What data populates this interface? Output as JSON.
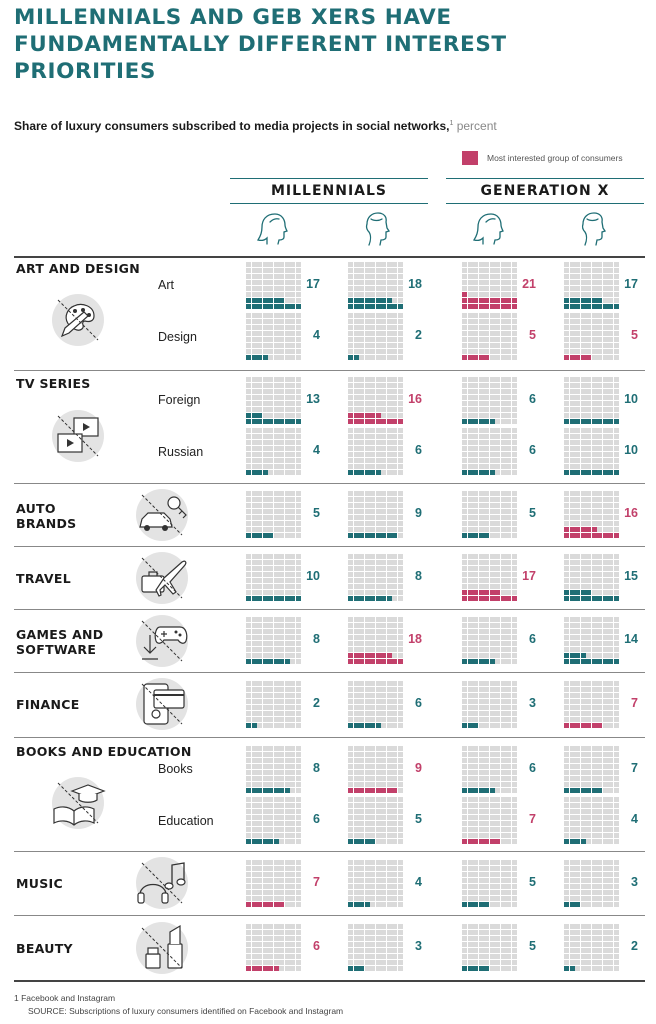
{
  "title_line1": "MILLENNIALS AND GEB XERS HAVE",
  "title_line2": "FUNDAMENTALLY DIFFERENT INTEREST PRIORITIES",
  "subtitle": "Share of luxury consumers subscribed to media projects in social networks,",
  "subtitle_sup": "1",
  "subtitle_unit": " percent",
  "legend_label": "Most interested group of consumers",
  "colors": {
    "teal": "#1f6e75",
    "pink": "#c2406a",
    "empty": "#dadada"
  },
  "footnote_1": "1   Facebook and Instagram",
  "footnote_2": "SOURCE: Subscriptions of luxury consumers identified on Facebook and Instagram",
  "chart_data": {
    "type": "table",
    "unit": "percent",
    "groups": [
      {
        "name": "MILLENNIALS",
        "columns": [
          {
            "gender": "female",
            "icon": "female-head-icon"
          },
          {
            "gender": "male",
            "icon": "male-head-icon"
          }
        ]
      },
      {
        "name": "GENERATION X",
        "columns": [
          {
            "gender": "female",
            "icon": "female-head-icon"
          },
          {
            "gender": "male",
            "icon": "male-head-icon"
          }
        ]
      }
    ],
    "column_order": [
      "Millennials female",
      "Millennials male",
      "Generation X female",
      "Generation X male"
    ],
    "categories": [
      {
        "name": "ART AND DESIGN",
        "icon": "palette-pencil-icon",
        "rows": [
          {
            "label": "Art",
            "values": [
              17,
              18,
              21,
              17
            ],
            "highlight": 2
          },
          {
            "label": "Design",
            "values": [
              4,
              2,
              5,
              5
            ],
            "highlight": [
              2,
              3
            ]
          }
        ]
      },
      {
        "name": "TV SERIES",
        "icon": "video-screens-icon",
        "rows": [
          {
            "label": "Foreign",
            "values": [
              13,
              16,
              6,
              10
            ],
            "highlight": 1
          },
          {
            "label": "Russian",
            "values": [
              4,
              6,
              6,
              10
            ],
            "highlight": null
          }
        ]
      },
      {
        "name": "AUTO BRANDS",
        "icon": "car-key-icon",
        "rows": [
          {
            "label": "",
            "values": [
              5,
              9,
              5,
              16
            ],
            "highlight": 3
          }
        ]
      },
      {
        "name": "TRAVEL",
        "icon": "plane-suitcase-icon",
        "rows": [
          {
            "label": "",
            "values": [
              10,
              8,
              17,
              15
            ],
            "highlight": 2
          }
        ]
      },
      {
        "name": "GAMES AND SOFTWARE",
        "icon": "gamepad-download-icon",
        "rows": [
          {
            "label": "",
            "values": [
              8,
              18,
              6,
              14
            ],
            "highlight": 1
          }
        ]
      },
      {
        "name": "FINANCE",
        "icon": "card-phone-icon",
        "rows": [
          {
            "label": "",
            "values": [
              2,
              6,
              3,
              7
            ],
            "highlight": 3
          }
        ]
      },
      {
        "name": "BOOKS AND EDUCATION",
        "icon": "book-graduation-cap-icon",
        "rows": [
          {
            "label": "Books",
            "values": [
              8,
              9,
              6,
              7
            ],
            "highlight": 1
          },
          {
            "label": "Education",
            "values": [
              6,
              5,
              7,
              4
            ],
            "highlight": 2
          }
        ]
      },
      {
        "name": "MUSIC",
        "icon": "headphones-note-icon",
        "rows": [
          {
            "label": "",
            "values": [
              7,
              4,
              5,
              3
            ],
            "highlight": 0
          }
        ]
      },
      {
        "name": "BEAUTY",
        "icon": "lipstick-icon",
        "rows": [
          {
            "label": "",
            "values": [
              6,
              3,
              5,
              2
            ],
            "highlight": 0
          }
        ]
      }
    ]
  }
}
